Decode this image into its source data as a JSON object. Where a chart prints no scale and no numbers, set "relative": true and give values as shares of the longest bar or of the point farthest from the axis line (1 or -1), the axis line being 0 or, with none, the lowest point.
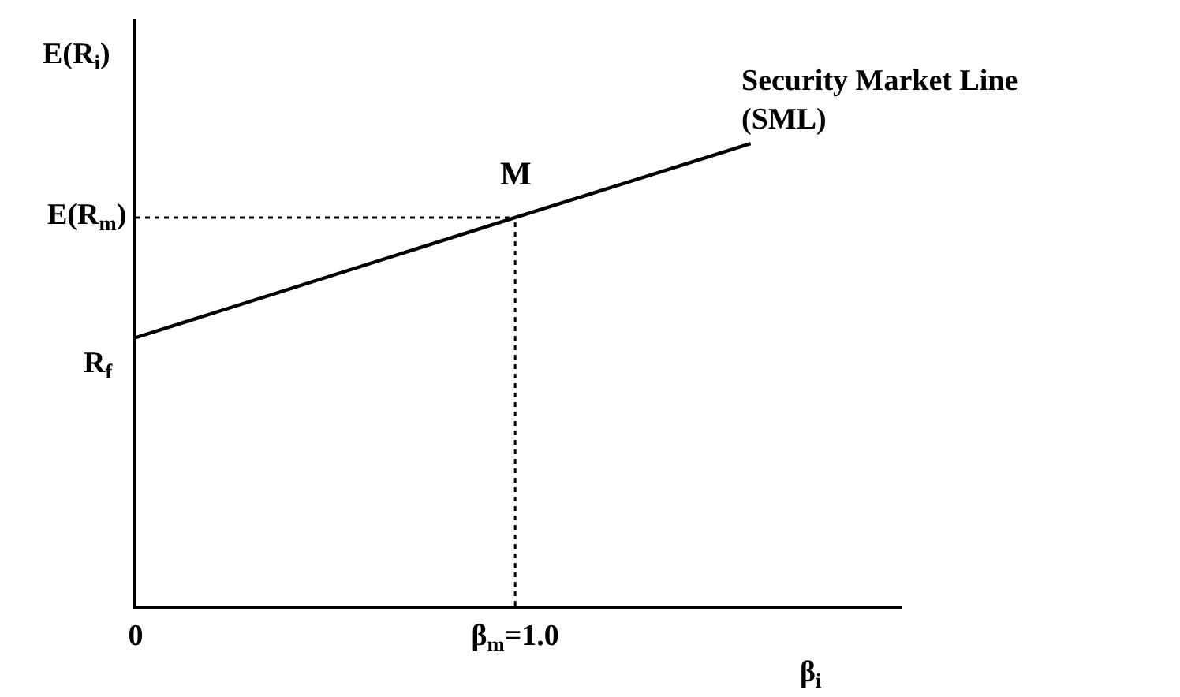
{
  "chart_data": {
    "type": "line",
    "relative": true,
    "xlabel": "β$_{i}$",
    "ylabel": "E(R$_{i}$)",
    "x": [
      0,
      1.0,
      1.62
    ],
    "series": [
      {
        "name": "Security Market Line\n(SML)",
        "color": "#000000",
        "values": [
          0.58,
          0.84,
          1
        ]
      }
    ],
    "xlim": [
      0,
      2.02
    ],
    "xticks": [
      {
        "value": 0,
        "label": "0"
      },
      {
        "value": 1.0,
        "label": "β$_{m}$=1.0"
      }
    ],
    "ref_lines": [
      {
        "axis": "x",
        "value": 1.0,
        "line_style": "dotted",
        "color": "#000000"
      },
      {
        "axis": "y",
        "value": 0.84,
        "label": "E(R$_{m}$)",
        "line_style": "dotted",
        "color": "#000000"
      }
    ],
    "annotations": [
      {
        "text": "R$_{f}$",
        "x": 0,
        "y": 0.58
      },
      {
        "text": "M",
        "x": 1.0,
        "y": 0.84
      }
    ],
    "legend": false,
    "marker": "none",
    "line_style": "solid"
  }
}
